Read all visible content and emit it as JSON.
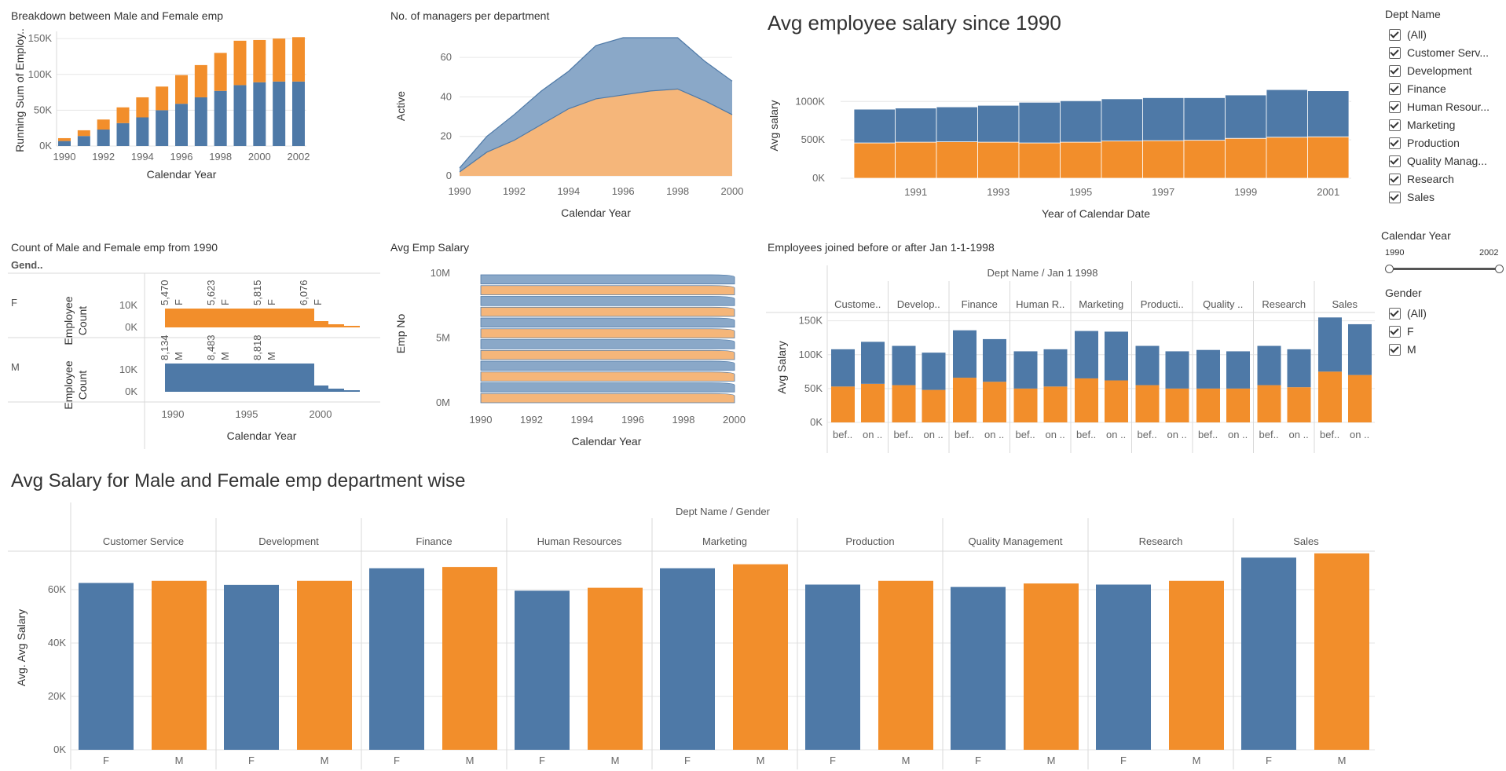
{
  "colors": {
    "blue": "#4e79a7",
    "orange": "#f28e2b",
    "blue_area": "#8aa8c8",
    "orange_area": "#f5b67a",
    "grid": "#e6e6e6"
  },
  "chart_data": [
    {
      "id": "c1",
      "type": "bar",
      "title": "Breakdown between Male and Female emp",
      "xlabel": "Calendar Year",
      "ylabel": "Running Sum of Employ..",
      "categories": [
        1990,
        1991,
        1992,
        1993,
        1994,
        1995,
        1996,
        1997,
        1998,
        1999,
        2000,
        2001,
        2002
      ],
      "series": [
        {
          "values": [
            7,
            14,
            23,
            32,
            40,
            50,
            59,
            68,
            77,
            85,
            89,
            90,
            90
          ]
        },
        {
          "values": [
            4,
            8,
            14,
            22,
            28,
            33,
            40,
            45,
            53,
            62,
            59,
            60,
            62
          ]
        }
      ],
      "stacked": true,
      "ylim": [
        0,
        160
      ],
      "yticks": [
        0,
        50,
        100,
        150
      ],
      "ytick_labels": [
        "0K",
        "50K",
        "100K",
        "150K"
      ],
      "xtick_labels": [
        "1990",
        "1992",
        "1994",
        "1996",
        "1998",
        "2000",
        "2002"
      ]
    },
    {
      "id": "c2",
      "type": "area",
      "title": "No. of managers per department",
      "xlabel": "Calendar Year",
      "ylabel": "Active",
      "x": [
        1990,
        1991,
        1992,
        1993,
        1994,
        1995,
        1996,
        1997,
        1998,
        1999,
        2000
      ],
      "series": [
        {
          "values": [
            2,
            12,
            18,
            26,
            34,
            39,
            41,
            43,
            44,
            38,
            31
          ]
        },
        {
          "values": [
            2,
            8,
            13,
            17,
            19,
            27,
            29,
            27,
            26,
            20,
            17
          ]
        }
      ],
      "stacked": true,
      "ylim": [
        0,
        70
      ],
      "yticks": [
        0,
        20,
        40,
        60
      ],
      "ytick_labels": [
        "0",
        "20",
        "40",
        "60"
      ],
      "xtick_labels": [
        "1990",
        "1992",
        "1994",
        "1996",
        "1998",
        "2000"
      ]
    },
    {
      "id": "c3",
      "type": "bar",
      "title": "Avg employee salary since 1990",
      "xlabel": "Year of Calendar Date",
      "ylabel": "Avg salary",
      "categories": [
        1990,
        1991,
        1992,
        1993,
        1994,
        1995,
        1996,
        1997,
        1998,
        1999,
        2000,
        2001
      ],
      "series": [
        {
          "values": [
            460,
            470,
            475,
            470,
            460,
            470,
            485,
            490,
            495,
            520,
            535,
            540
          ]
        },
        {
          "values": [
            440,
            445,
            455,
            480,
            530,
            540,
            550,
            560,
            555,
            565,
            620,
            600
          ]
        }
      ],
      "stacked": true,
      "ylim": [
        0,
        1300
      ],
      "yticks": [
        0,
        500,
        1000
      ],
      "ytick_labels": [
        "0K",
        "500K",
        "1000K"
      ],
      "xtick_labels": [
        "1991",
        "1993",
        "1995",
        "1997",
        "1999",
        "2001"
      ]
    },
    {
      "id": "c4",
      "type": "bar",
      "title": "Count of Male and Female emp from 1990",
      "xlabel": "Calendar Year",
      "ylabel": "Employee Count",
      "header": "Gend..",
      "rows": [
        {
          "label": "F",
          "values": [
            5.47,
            5.623,
            5.815,
            6.076
          ],
          "labels": [
            "5,470",
            "5,623",
            "5,815",
            "6,076"
          ],
          "tag": "F"
        },
        {
          "label": "M",
          "values": [
            8.134,
            8.483,
            8.818
          ],
          "labels": [
            "8,134",
            "8,483",
            "8,818"
          ],
          "tag": "M"
        }
      ],
      "yticks": [
        0,
        10
      ],
      "ytick_labels": [
        "0K",
        "10K"
      ],
      "xtick_labels": [
        "1990",
        "1995",
        "2000"
      ]
    },
    {
      "id": "c5",
      "type": "area",
      "title": "Avg Emp Salary",
      "xlabel": "Calendar Year",
      "ylabel": "Emp No",
      "ylim": [
        0,
        10
      ],
      "yticks": [
        0,
        5,
        10
      ],
      "ytick_labels": [
        "0M",
        "5M",
        "10M"
      ],
      "xtick_labels": [
        "1990",
        "1992",
        "1994",
        "1996",
        "1998",
        "2000"
      ]
    },
    {
      "id": "c6",
      "type": "bar",
      "title": "Employees joined before or after Jan 1-1-1998",
      "header": "Dept Name  /  Jan 1 1998",
      "ylabel": "Avg Salary",
      "groups": [
        "Custome..",
        "Develop..",
        "Finance",
        "Human R..",
        "Marketing",
        "Producti..",
        "Quality ..",
        "Research",
        "Sales"
      ],
      "sub_labels": [
        "bef..",
        "on .."
      ],
      "series": [
        {
          "values": [
            55,
            62,
            58,
            55,
            70,
            63,
            55,
            55,
            70,
            72,
            58,
            55,
            57,
            55,
            58,
            56,
            80,
            75
          ]
        },
        {
          "values": [
            53,
            57,
            55,
            48,
            66,
            60,
            50,
            53,
            65,
            62,
            55,
            50,
            50,
            50,
            55,
            52,
            75,
            70
          ]
        }
      ],
      "stacked": true,
      "ylim": [
        0,
        160
      ],
      "yticks": [
        0,
        50,
        100,
        150
      ],
      "ytick_labels": [
        "0K",
        "50K",
        "100K",
        "150K"
      ]
    },
    {
      "id": "c7",
      "type": "bar",
      "title": "Avg Salary for Male and Female emp department wise",
      "header": "Dept Name  /  Gender",
      "ylabel": "Avg. Avg Salary",
      "groups": [
        "Customer Service",
        "Development",
        "Finance",
        "Human Resources",
        "Marketing",
        "Production",
        "Quality Management",
        "Research",
        "Sales"
      ],
      "sub_labels": [
        "F",
        "M"
      ],
      "values": [
        [
          62.5,
          63.3
        ],
        [
          61.8,
          63.3
        ],
        [
          68.0,
          68.5
        ],
        [
          59.6,
          60.7
        ],
        [
          68.0,
          69.5
        ],
        [
          61.9,
          63.3
        ],
        [
          61.0,
          62.3
        ],
        [
          61.9,
          63.3
        ],
        [
          72.0,
          73.6
        ]
      ],
      "ylim": [
        0,
        75
      ],
      "yticks": [
        0,
        20,
        40,
        60
      ],
      "ytick_labels": [
        "0K",
        "20K",
        "40K",
        "60K"
      ]
    }
  ],
  "filters": {
    "dept": {
      "title": "Dept Name",
      "items": [
        "(All)",
        "Customer Serv...",
        "Development",
        "Finance",
        "Human Resour...",
        "Marketing",
        "Production",
        "Quality Manag...",
        "Research",
        "Sales"
      ]
    },
    "year": {
      "title": "Calendar Year",
      "min": "1990",
      "max": "2002"
    },
    "gender": {
      "title": "Gender",
      "items": [
        "(All)",
        "F",
        "M"
      ]
    }
  }
}
